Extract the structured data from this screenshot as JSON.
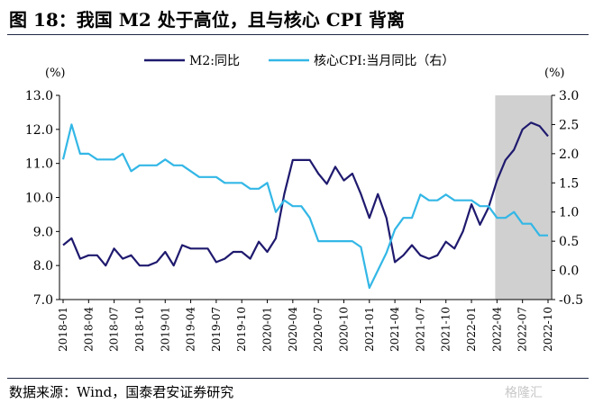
{
  "title": "图 18：我国 M2 处于高位，且与核心 CPI 背离",
  "source": "数据来源：Wind，国泰君安证券研究",
  "watermark": "格隆汇",
  "colors": {
    "m2": "#1f1a6e",
    "cpi": "#33b7e6",
    "shade": "#d0d0d0",
    "axis": "#000000"
  },
  "chart_data": {
    "type": "line",
    "left_unit": "(%)",
    "right_unit": "(%)",
    "ylim_left": [
      7.0,
      13.0
    ],
    "yticks_left": [
      "7.0",
      "8.0",
      "9.0",
      "10.0",
      "11.0",
      "12.0",
      "13.0"
    ],
    "ylim_right": [
      -0.5,
      3.0
    ],
    "yticks_right": [
      "-0.5",
      "0.0",
      "0.5",
      "1.0",
      "1.5",
      "2.0",
      "2.5",
      "3.0"
    ],
    "x_ticks": [
      "2018-01",
      "2018-04",
      "2018-07",
      "2018-10",
      "2019-01",
      "2019-04",
      "2019-07",
      "2019-10",
      "2020-01",
      "2020-04",
      "2020-07",
      "2020-10",
      "2021-01",
      "2021-04",
      "2021-07",
      "2021-10",
      "2022-01",
      "2022-04",
      "2022-07",
      "2022-10"
    ],
    "shaded_range": [
      "2022-04",
      "2022-10"
    ],
    "legend_placement": "top",
    "series": [
      {
        "name": "M2:同比",
        "axis": "left",
        "x": [
          "2018-01",
          "2018-02",
          "2018-03",
          "2018-04",
          "2018-05",
          "2018-06",
          "2018-07",
          "2018-08",
          "2018-09",
          "2018-10",
          "2018-11",
          "2018-12",
          "2019-01",
          "2019-02",
          "2019-03",
          "2019-04",
          "2019-05",
          "2019-06",
          "2019-07",
          "2019-08",
          "2019-09",
          "2019-10",
          "2019-11",
          "2019-12",
          "2020-01",
          "2020-02",
          "2020-03",
          "2020-04",
          "2020-05",
          "2020-06",
          "2020-07",
          "2020-08",
          "2020-09",
          "2020-10",
          "2020-11",
          "2020-12",
          "2021-01",
          "2021-02",
          "2021-03",
          "2021-04",
          "2021-05",
          "2021-06",
          "2021-07",
          "2021-08",
          "2021-09",
          "2021-10",
          "2021-11",
          "2021-12",
          "2022-01",
          "2022-02",
          "2022-03",
          "2022-04",
          "2022-05",
          "2022-06",
          "2022-07",
          "2022-08",
          "2022-09",
          "2022-10"
        ],
        "values": [
          8.6,
          8.8,
          8.2,
          8.3,
          8.3,
          8.0,
          8.5,
          8.2,
          8.3,
          8.0,
          8.0,
          8.1,
          8.4,
          8.0,
          8.6,
          8.5,
          8.5,
          8.5,
          8.1,
          8.2,
          8.4,
          8.4,
          8.2,
          8.7,
          8.4,
          8.8,
          10.1,
          11.1,
          11.1,
          11.1,
          10.7,
          10.4,
          10.9,
          10.5,
          10.7,
          10.1,
          9.4,
          10.1,
          9.4,
          8.1,
          8.3,
          8.6,
          8.3,
          8.2,
          8.3,
          8.7,
          8.5,
          9.0,
          9.8,
          9.2,
          9.7,
          10.5,
          11.1,
          11.4,
          12.0,
          12.2,
          12.1,
          11.8
        ]
      },
      {
        "name": "核心CPI:当月同比（右）",
        "axis": "right",
        "x": [
          "2018-01",
          "2018-02",
          "2018-03",
          "2018-04",
          "2018-05",
          "2018-06",
          "2018-07",
          "2018-08",
          "2018-09",
          "2018-10",
          "2018-11",
          "2018-12",
          "2019-01",
          "2019-02",
          "2019-03",
          "2019-04",
          "2019-05",
          "2019-06",
          "2019-07",
          "2019-08",
          "2019-09",
          "2019-10",
          "2019-11",
          "2019-12",
          "2020-01",
          "2020-02",
          "2020-03",
          "2020-04",
          "2020-05",
          "2020-06",
          "2020-07",
          "2020-08",
          "2020-09",
          "2020-10",
          "2020-11",
          "2020-12",
          "2021-01",
          "2021-02",
          "2021-03",
          "2021-04",
          "2021-05",
          "2021-06",
          "2021-07",
          "2021-08",
          "2021-09",
          "2021-10",
          "2021-11",
          "2021-12",
          "2022-01",
          "2022-02",
          "2022-03",
          "2022-04",
          "2022-05",
          "2022-06",
          "2022-07",
          "2022-08",
          "2022-09",
          "2022-10"
        ],
        "values": [
          1.9,
          2.5,
          2.0,
          2.0,
          1.9,
          1.9,
          1.9,
          2.0,
          1.7,
          1.8,
          1.8,
          1.8,
          1.9,
          1.8,
          1.8,
          1.7,
          1.6,
          1.6,
          1.6,
          1.5,
          1.5,
          1.5,
          1.4,
          1.4,
          1.5,
          1.0,
          1.2,
          1.1,
          1.1,
          0.9,
          0.5,
          0.5,
          0.5,
          0.5,
          0.5,
          0.4,
          -0.3,
          0.0,
          0.3,
          0.7,
          0.9,
          0.9,
          1.3,
          1.2,
          1.2,
          1.3,
          1.2,
          1.2,
          1.2,
          1.1,
          1.1,
          0.9,
          0.9,
          1.0,
          0.8,
          0.8,
          0.6,
          0.6
        ]
      }
    ]
  }
}
